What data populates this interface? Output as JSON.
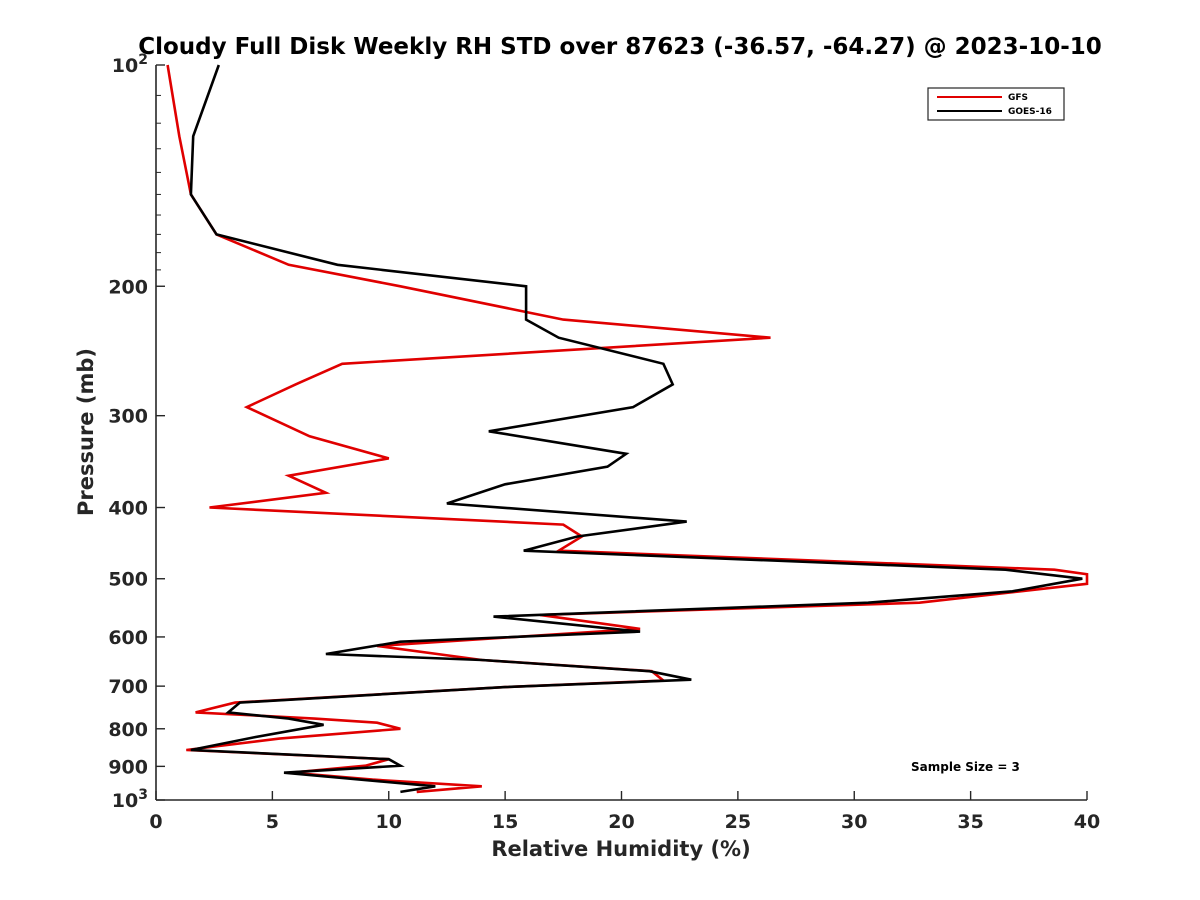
{
  "chart_data": {
    "type": "line",
    "title": "Cloudy Full Disk Weekly RH STD over 87623 (-36.57, -64.27) @ 2023-10-10",
    "xlabel": "Relative Humidity (%)",
    "ylabel": "Pressure (mb)",
    "xlim": [
      0,
      40
    ],
    "ylim": [
      100,
      1000
    ],
    "yscale": "log",
    "y_reversed": true,
    "x_ticks": [
      "0",
      "5",
      "10",
      "15",
      "20",
      "25",
      "30",
      "35",
      "40"
    ],
    "y_ticks": [
      {
        "value": 100,
        "label": "10",
        "sup": "2"
      },
      {
        "value": 200,
        "label": "200",
        "sup": ""
      },
      {
        "value": 300,
        "label": "300",
        "sup": ""
      },
      {
        "value": 400,
        "label": "400",
        "sup": ""
      },
      {
        "value": 500,
        "label": "500",
        "sup": ""
      },
      {
        "value": 600,
        "label": "600",
        "sup": ""
      },
      {
        "value": 700,
        "label": "700",
        "sup": ""
      },
      {
        "value": 800,
        "label": "800",
        "sup": ""
      },
      {
        "value": 900,
        "label": "900",
        "sup": ""
      },
      {
        "value": 1000,
        "label": "10",
        "sup": "3"
      }
    ],
    "grid": false,
    "legend_position": "top-right",
    "annotation": "Sample Size = 3",
    "series": [
      {
        "name": "GFS",
        "color": "#e00000",
        "points": [
          [
            0.5,
            100
          ],
          [
            1.0,
            125
          ],
          [
            1.5,
            150
          ],
          [
            2.6,
            170
          ],
          [
            5.7,
            187
          ],
          [
            10.5,
            200
          ],
          [
            17.5,
            222
          ],
          [
            26.4,
            235
          ],
          [
            8.0,
            255
          ],
          [
            6.0,
            272
          ],
          [
            3.9,
            292
          ],
          [
            6.6,
            320
          ],
          [
            10.0,
            343
          ],
          [
            5.7,
            362
          ],
          [
            7.3,
            382
          ],
          [
            2.3,
            400
          ],
          [
            17.5,
            422
          ],
          [
            18.3,
            438
          ],
          [
            17.3,
            458
          ],
          [
            38.6,
            486
          ],
          [
            40.0,
            493
          ],
          [
            40.0,
            508
          ],
          [
            32.8,
            539
          ],
          [
            16.5,
            560
          ],
          [
            20.8,
            585
          ],
          [
            9.5,
            617
          ],
          [
            14.0,
            645
          ],
          [
            21.3,
            668
          ],
          [
            21.8,
            688
          ],
          [
            15.0,
            702
          ],
          [
            3.4,
            737
          ],
          [
            1.7,
            760
          ],
          [
            6.8,
            775
          ],
          [
            9.5,
            785
          ],
          [
            10.5,
            800
          ],
          [
            5.3,
            825
          ],
          [
            1.3,
            855
          ],
          [
            10.0,
            880
          ],
          [
            9.0,
            898
          ],
          [
            5.8,
            918
          ],
          [
            9.3,
            938
          ],
          [
            14.0,
            958
          ],
          [
            11.2,
            975
          ]
        ]
      },
      {
        "name": "GOES-16",
        "color": "#000000",
        "points": [
          [
            2.7,
            100
          ],
          [
            1.6,
            125
          ],
          [
            1.5,
            150
          ],
          [
            2.6,
            170
          ],
          [
            7.8,
            187
          ],
          [
            15.9,
            200
          ],
          [
            15.9,
            222
          ],
          [
            17.3,
            235
          ],
          [
            21.8,
            255
          ],
          [
            22.2,
            272
          ],
          [
            20.5,
            292
          ],
          [
            14.3,
            315
          ],
          [
            20.2,
            338
          ],
          [
            19.4,
            352
          ],
          [
            15.0,
            372
          ],
          [
            12.5,
            395
          ],
          [
            22.8,
            418
          ],
          [
            18.1,
            438
          ],
          [
            15.8,
            458
          ],
          [
            36.5,
            486
          ],
          [
            39.8,
            500
          ],
          [
            36.8,
            520
          ],
          [
            30.6,
            539
          ],
          [
            14.5,
            563
          ],
          [
            20.8,
            590
          ],
          [
            10.5,
            609
          ],
          [
            7.3,
            633
          ],
          [
            14.0,
            645
          ],
          [
            21.2,
            668
          ],
          [
            23.0,
            686
          ],
          [
            15.0,
            702
          ],
          [
            3.6,
            737
          ],
          [
            3.1,
            760
          ],
          [
            5.7,
            775
          ],
          [
            7.2,
            790
          ],
          [
            4.2,
            822
          ],
          [
            1.5,
            855
          ],
          [
            10.0,
            880
          ],
          [
            10.5,
            898
          ],
          [
            5.5,
            918
          ],
          [
            12.0,
            958
          ],
          [
            10.5,
            975
          ]
        ]
      }
    ]
  }
}
